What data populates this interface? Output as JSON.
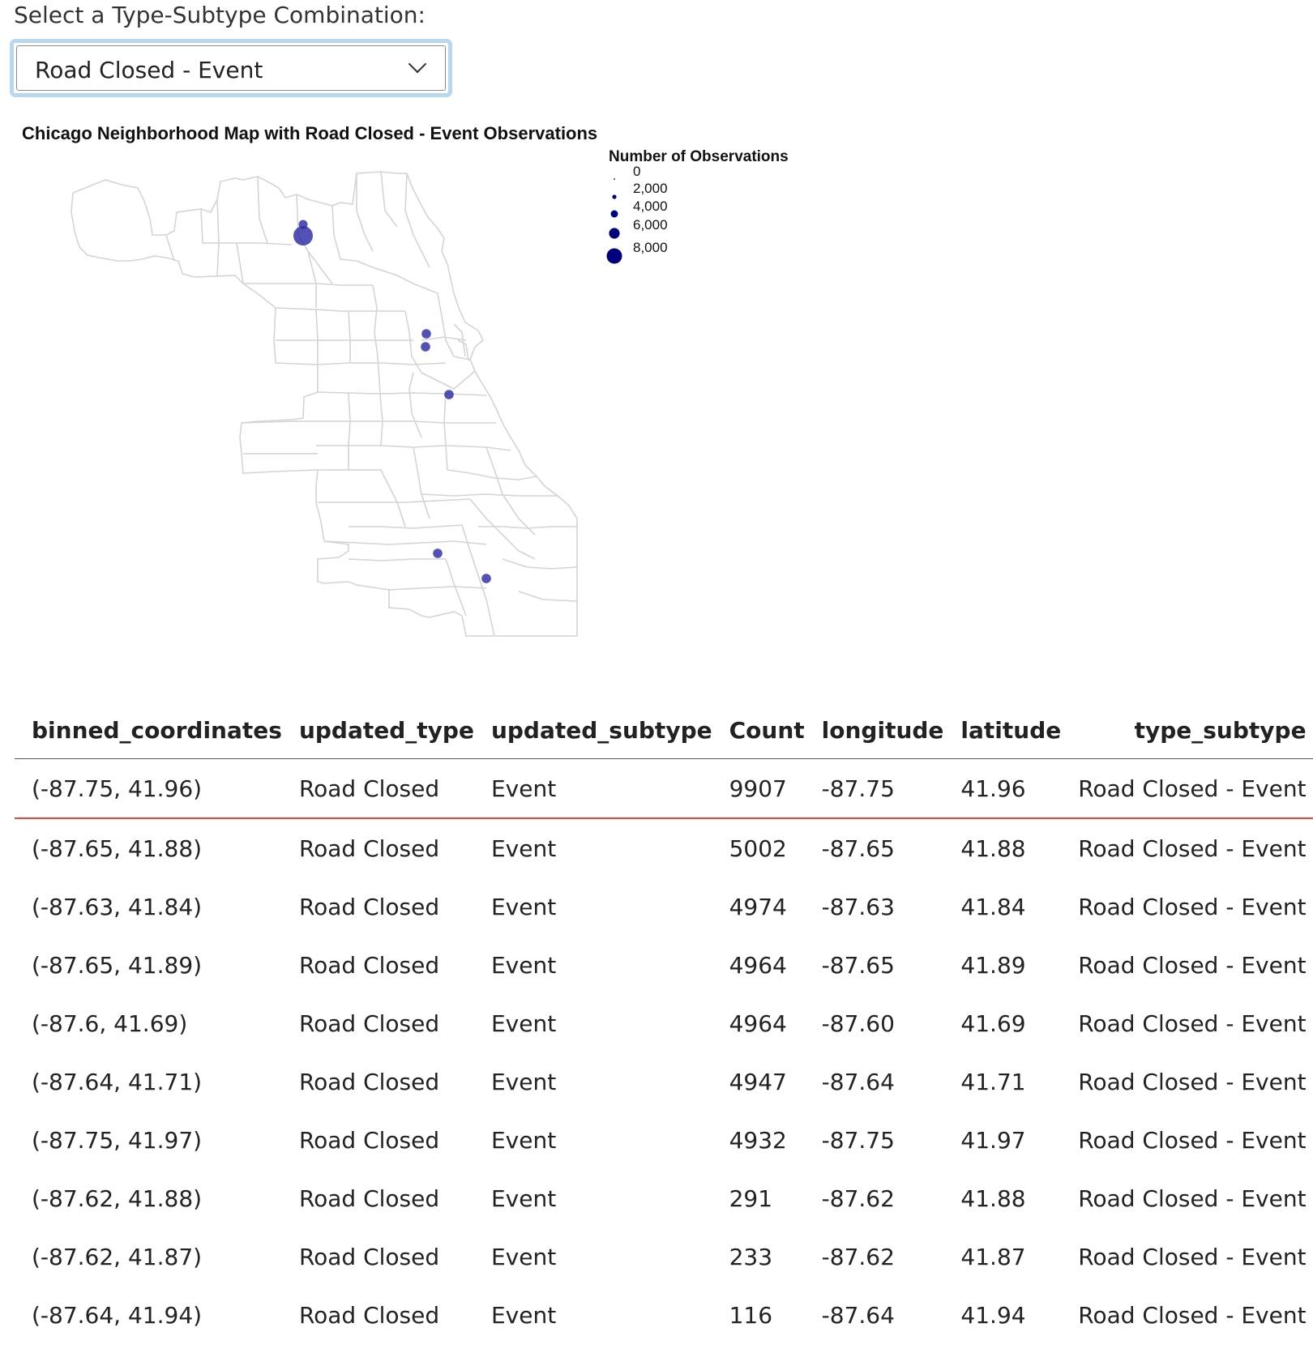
{
  "control": {
    "label": "Select a Type-Subtype Combination:",
    "selected": "Road Closed - Event"
  },
  "map": {
    "title": "Chicago Neighborhood Map with Road Closed - Event Observations",
    "legend": {
      "title": "Number of Observations",
      "entries": [
        "0",
        "2,000",
        "4,000",
        "6,000",
        "8,000"
      ]
    },
    "point_color": "#2b2ba6",
    "boundary_color": "#d4d4d4"
  },
  "table": {
    "columns": [
      "binned_coordinates",
      "updated_type",
      "updated_subtype",
      "Count",
      "longitude",
      "latitude",
      "type_subtype"
    ],
    "rows": [
      [
        "(-87.75, 41.96)",
        "Road Closed",
        "Event",
        "9907",
        "-87.75",
        "41.96",
        "Road Closed - Event"
      ],
      [
        "(-87.65, 41.88)",
        "Road Closed",
        "Event",
        "5002",
        "-87.65",
        "41.88",
        "Road Closed - Event"
      ],
      [
        "(-87.63, 41.84)",
        "Road Closed",
        "Event",
        "4974",
        "-87.63",
        "41.84",
        "Road Closed - Event"
      ],
      [
        "(-87.65, 41.89)",
        "Road Closed",
        "Event",
        "4964",
        "-87.65",
        "41.89",
        "Road Closed - Event"
      ],
      [
        "(-87.6, 41.69)",
        "Road Closed",
        "Event",
        "4964",
        "-87.60",
        "41.69",
        "Road Closed - Event"
      ],
      [
        "(-87.64, 41.71)",
        "Road Closed",
        "Event",
        "4947",
        "-87.64",
        "41.71",
        "Road Closed - Event"
      ],
      [
        "(-87.75, 41.97)",
        "Road Closed",
        "Event",
        "4932",
        "-87.75",
        "41.97",
        "Road Closed - Event"
      ],
      [
        "(-87.62, 41.88)",
        "Road Closed",
        "Event",
        "291",
        "-87.62",
        "41.88",
        "Road Closed - Event"
      ],
      [
        "(-87.62, 41.87)",
        "Road Closed",
        "Event",
        "233",
        "-87.62",
        "41.87",
        "Road Closed - Event"
      ],
      [
        "(-87.64, 41.94)",
        "Road Closed",
        "Event",
        "116",
        "-87.64",
        "41.94",
        "Road Closed - Event"
      ]
    ]
  }
}
